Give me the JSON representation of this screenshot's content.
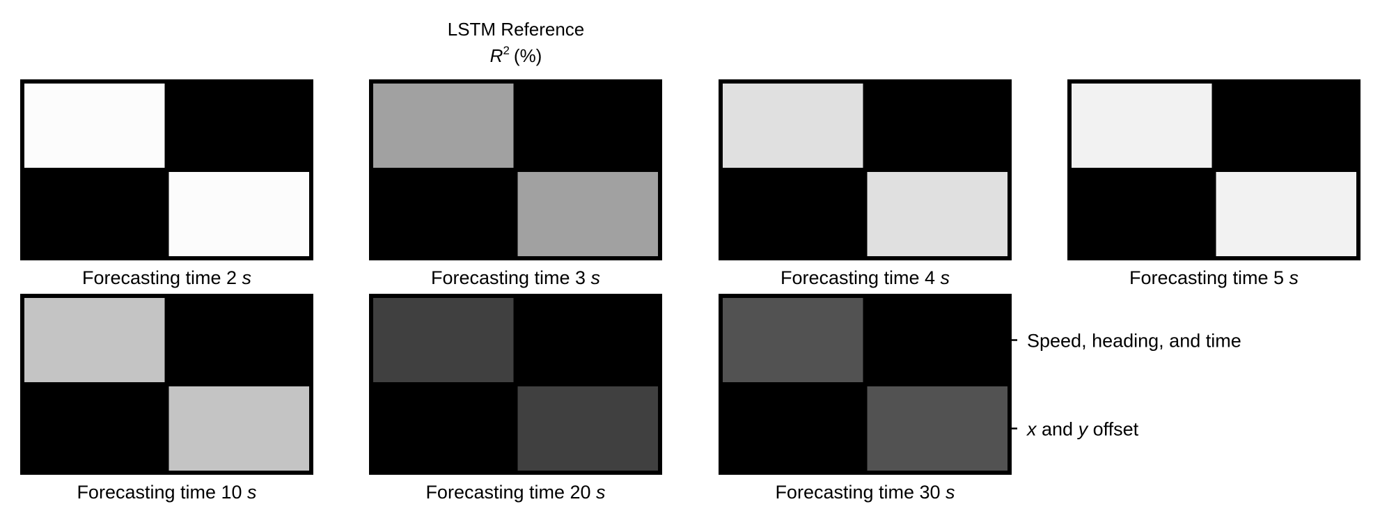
{
  "chart_data": {
    "type": "heatmap",
    "title_lines": [
      "LSTM Reference",
      "R² (%)"
    ],
    "title_parts": {
      "line1": "LSTM Reference",
      "symbol": "R",
      "superscript": "2",
      "unit": "(%)"
    },
    "ytick_labels": [
      "Speed, heading, and time",
      "x and y offset"
    ],
    "ytick_label_parts": [
      {
        "pre_italic": "",
        "italic": "",
        "rest": "Speed, heading, and time"
      },
      {
        "pre_italic": "",
        "italic": "x",
        "mid": " and ",
        "italic2": "y",
        "rest": " offset"
      }
    ],
    "colormap": "gray",
    "panels": [
      {
        "label_prefix": "Forecasting time",
        "time": "2",
        "unit": "s",
        "matrix": [
          [
            0.99,
            0.0
          ],
          [
            0.0,
            0.99
          ]
        ]
      },
      {
        "label_prefix": "Forecasting time",
        "time": "3",
        "unit": "s",
        "matrix": [
          [
            0.63,
            0.0
          ],
          [
            0.0,
            0.63
          ]
        ]
      },
      {
        "label_prefix": "Forecasting time",
        "time": "4",
        "unit": "s",
        "matrix": [
          [
            0.88,
            0.0
          ],
          [
            0.0,
            0.88
          ]
        ]
      },
      {
        "label_prefix": "Forecasting time",
        "time": "5",
        "unit": "s",
        "matrix": [
          [
            0.95,
            0.0
          ],
          [
            0.0,
            0.95
          ]
        ]
      },
      {
        "label_prefix": "Forecasting time",
        "time": "10",
        "unit": "s",
        "matrix": [
          [
            0.77,
            0.0
          ],
          [
            0.0,
            0.77
          ]
        ]
      },
      {
        "label_prefix": "Forecasting time",
        "time": "20",
        "unit": "s",
        "matrix": [
          [
            0.25,
            0.0
          ],
          [
            0.0,
            0.25
          ]
        ]
      },
      {
        "label_prefix": "Forecasting time",
        "time": "30",
        "unit": "s",
        "matrix": [
          [
            0.32,
            0.0
          ],
          [
            0.0,
            0.32
          ]
        ]
      }
    ]
  }
}
